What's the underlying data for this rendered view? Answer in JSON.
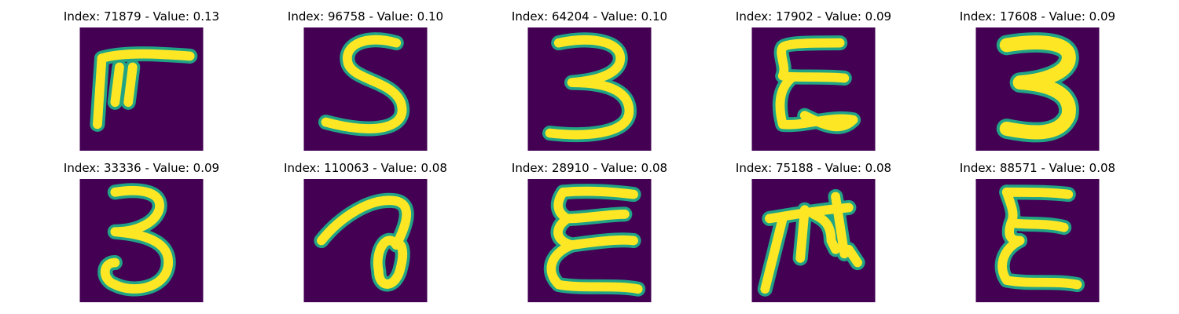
{
  "colors": {
    "background": "#440154",
    "stroke_outer": "#21a386",
    "stroke_inner": "#fde725"
  },
  "panels": [
    {
      "title": "Index: 71879 - Value: 0.13",
      "glyph": "glyph-pi-like"
    },
    {
      "title": "Index: 96758 - Value: 0.10",
      "glyph": "glyph-s"
    },
    {
      "title": "Index: 64204 - Value: 0.10",
      "glyph": "glyph-3"
    },
    {
      "title": "Index: 17902 - Value: 0.09",
      "glyph": "glyph-epsilon"
    },
    {
      "title": "Index: 17608 - Value: 0.09",
      "glyph": "glyph-3-bold"
    },
    {
      "title": "Index: 33336 - Value: 0.09",
      "glyph": "glyph-3-loop"
    },
    {
      "title": "Index: 110063 - Value: 0.08",
      "glyph": "glyph-loop"
    },
    {
      "title": "Index: 28910 - Value: 0.08",
      "glyph": "glyph-epsilon-wide"
    },
    {
      "title": "Index: 75188 - Value: 0.08",
      "glyph": "glyph-m-like"
    },
    {
      "title": "Index: 88571 - Value: 0.08",
      "glyph": "glyph-sigma"
    }
  ]
}
